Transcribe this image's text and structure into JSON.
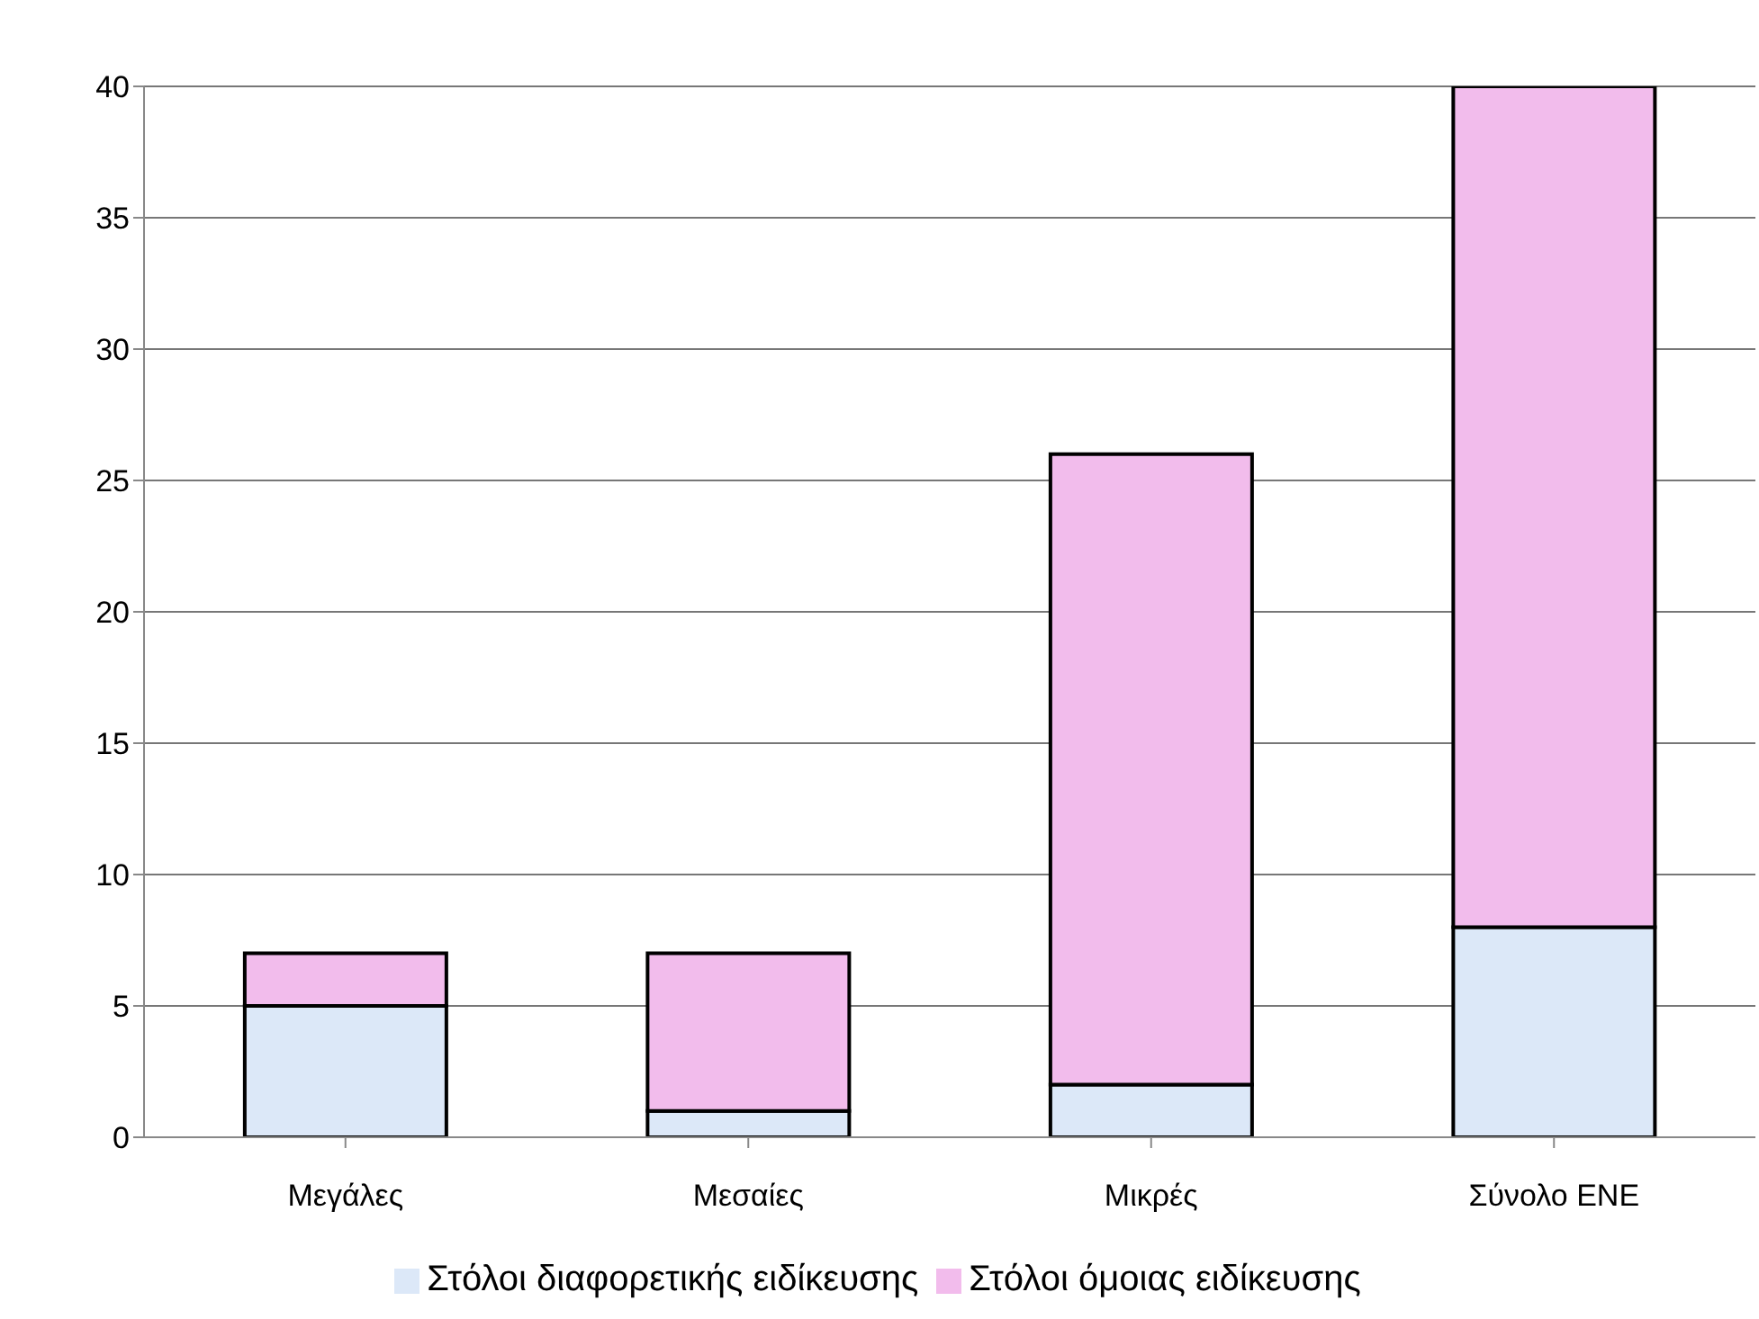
{
  "chart_data": {
    "type": "bar",
    "stacked": true,
    "categories": [
      "Μεγάλες",
      "Μεσαίες",
      "Μικρές",
      "Σύνολο ΕΝΕ"
    ],
    "series": [
      {
        "name": "Στόλοι διαφορετικής ειδίκευσης",
        "color": "#dce8f8",
        "values": [
          5,
          1,
          2,
          8
        ]
      },
      {
        "name": "Στόλοι όμοιας ειδίκευσης",
        "color": "#f2bcec",
        "values": [
          2,
          6,
          24,
          32
        ]
      }
    ],
    "ylim": [
      0,
      40
    ],
    "yticks": [
      0,
      5,
      10,
      15,
      20,
      25,
      30,
      35,
      40
    ],
    "grid": "y",
    "legend": "bottom"
  }
}
